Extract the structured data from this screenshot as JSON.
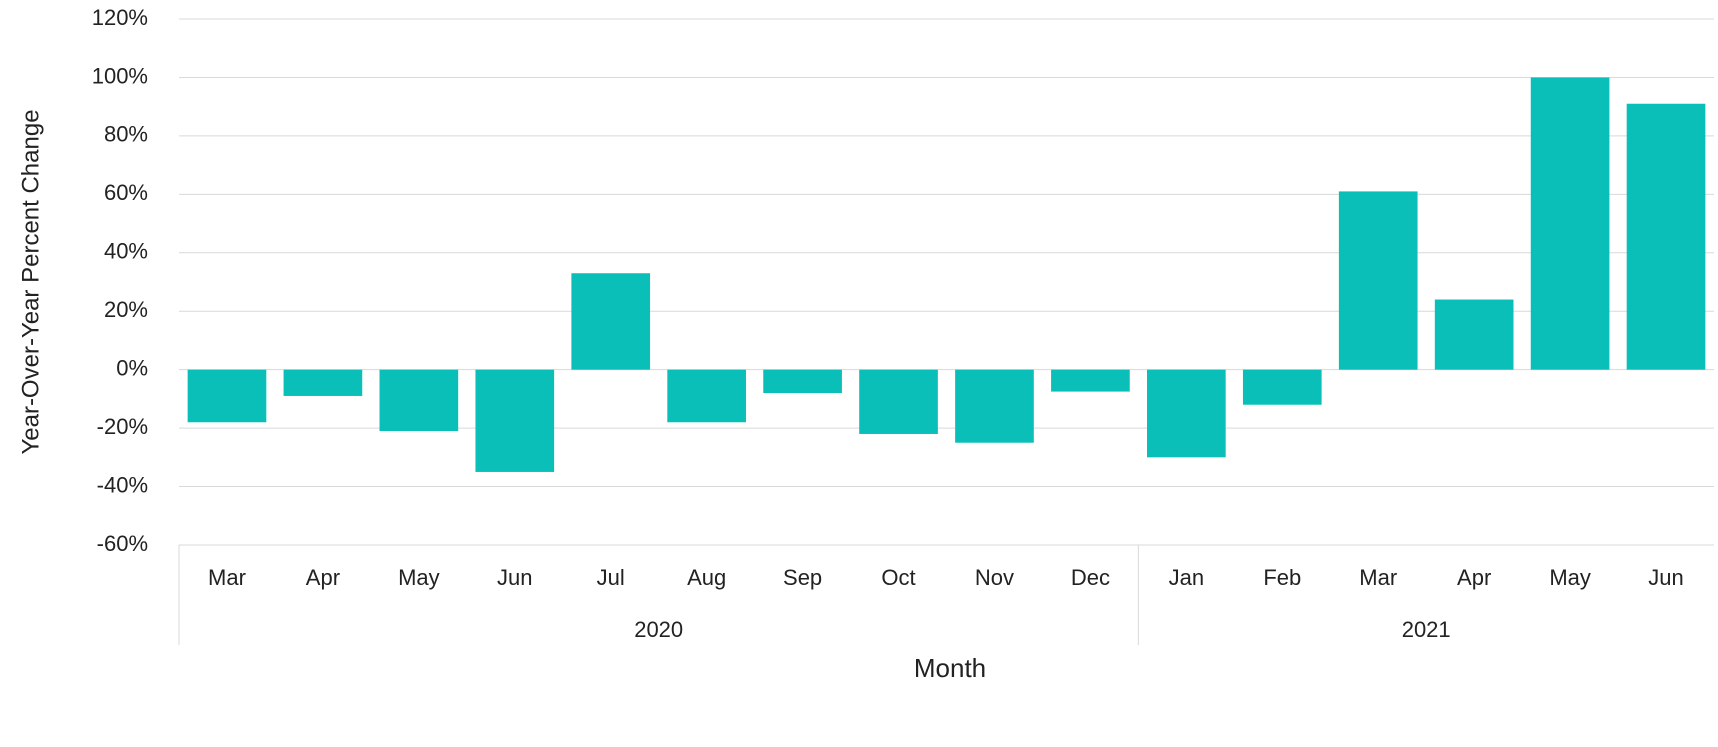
{
  "chart_data": {
    "type": "bar",
    "y_label": "Year-Over-Year Percent Change",
    "x_label": "Month",
    "color": "#0abfb7",
    "groups": [
      {
        "label": "2020",
        "categories": [
          "Mar",
          "Apr",
          "May",
          "Jun",
          "Jul",
          "Aug",
          "Sep",
          "Oct",
          "Nov",
          "Dec"
        ],
        "values": [
          -18,
          -9,
          -21,
          -35,
          33,
          -18,
          -8,
          -22,
          -25,
          -7.5
        ]
      },
      {
        "label": "2021",
        "categories": [
          "Jan",
          "Feb",
          "Mar",
          "Apr",
          "May",
          "Jun"
        ],
        "values": [
          -30,
          -12,
          61,
          24,
          100,
          91
        ]
      }
    ],
    "ylim": [
      -60,
      120
    ],
    "yticks": [
      {
        "value": -60,
        "label": "-60%"
      },
      {
        "value": -40,
        "label": "-40%"
      },
      {
        "value": -20,
        "label": "-20%"
      },
      {
        "value": 0,
        "label": "0%"
      },
      {
        "value": 20,
        "label": "20%"
      },
      {
        "value": 40,
        "label": "40%"
      },
      {
        "value": 60,
        "label": "60%"
      },
      {
        "value": 80,
        "label": "80%"
      },
      {
        "value": 100,
        "label": "100%"
      },
      {
        "value": 120,
        "label": "120%"
      }
    ],
    "grid": true
  }
}
